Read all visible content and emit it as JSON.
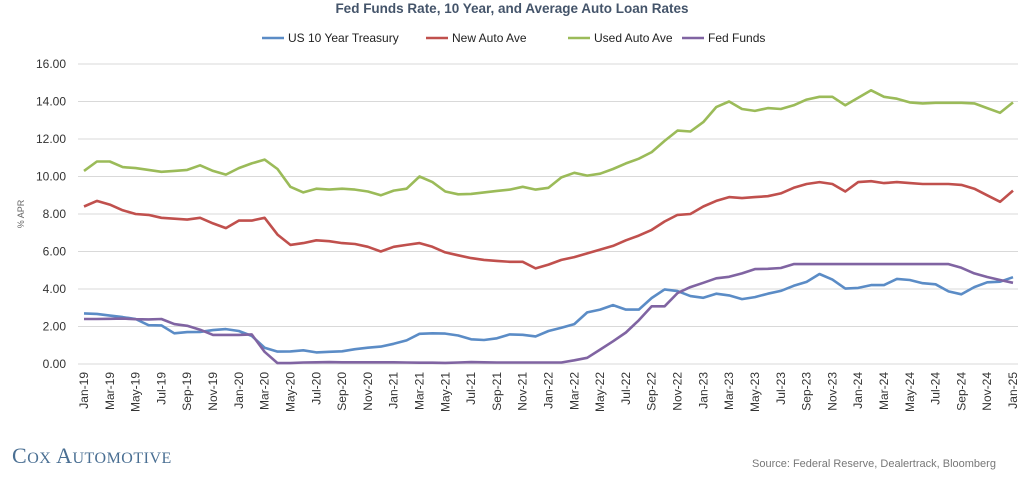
{
  "chart_data": {
    "type": "line",
    "title": "Fed Funds Rate, 10 Year, and Average Auto Loan Rates",
    "ylabel": "% APR",
    "xlabel": "",
    "ylim": [
      0,
      16
    ],
    "yticks": [
      "0.00",
      "2.00",
      "4.00",
      "6.00",
      "8.00",
      "10.00",
      "12.00",
      "14.00",
      "16.00"
    ],
    "grid": true,
    "legend_position": "top",
    "x_tick_labels": [
      "Jan-19",
      "Mar-19",
      "May-19",
      "Jul-19",
      "Sep-19",
      "Nov-19",
      "Jan-20",
      "Mar-20",
      "May-20",
      "Jul-20",
      "Sep-20",
      "Nov-20",
      "Jan-21",
      "Mar-21",
      "May-21",
      "Jul-21",
      "Sep-21",
      "Nov-21",
      "Jan-22",
      "Mar-22",
      "May-22",
      "Jul-22",
      "Sep-22",
      "Nov-22",
      "Jan-23",
      "Mar-23",
      "May-23",
      "Jul-23",
      "Sep-23",
      "Nov-23",
      "Jan-24",
      "Mar-24",
      "May-24",
      "Jul-24",
      "Sep-24",
      "Nov-24",
      "Jan-25"
    ],
    "x_range": [
      "Jan-19",
      "Jan-25"
    ],
    "x_frequency": "monthly",
    "series": [
      {
        "name": "US 10 Year Treasury",
        "color": "#5b8cc6",
        "values": [
          2.7,
          2.67,
          2.58,
          2.5,
          2.4,
          2.07,
          2.06,
          1.64,
          1.7,
          1.71,
          1.81,
          1.86,
          1.76,
          1.5,
          0.87,
          0.66,
          0.67,
          0.73,
          0.62,
          0.65,
          0.68,
          0.79,
          0.87,
          0.93,
          1.08,
          1.26,
          1.61,
          1.64,
          1.62,
          1.52,
          1.32,
          1.28,
          1.37,
          1.58,
          1.56,
          1.47,
          1.76,
          1.93,
          2.13,
          2.75,
          2.9,
          3.14,
          2.9,
          2.9,
          3.52,
          3.98,
          3.89,
          3.62,
          3.53,
          3.75,
          3.66,
          3.46,
          3.57,
          3.75,
          3.9,
          4.17,
          4.38,
          4.8,
          4.5,
          4.02,
          4.06,
          4.21,
          4.21,
          4.54,
          4.48,
          4.31,
          4.25,
          3.87,
          3.72,
          4.1,
          4.36,
          4.39,
          4.63
        ]
      },
      {
        "name": "New Auto Ave",
        "color": "#c0504d",
        "values": [
          8.4,
          8.7,
          8.5,
          8.2,
          8.0,
          7.95,
          7.8,
          7.75,
          7.7,
          7.8,
          7.5,
          7.25,
          7.65,
          7.65,
          7.8,
          6.9,
          6.35,
          6.45,
          6.6,
          6.55,
          6.45,
          6.4,
          6.25,
          6.0,
          6.25,
          6.35,
          6.45,
          6.25,
          5.95,
          5.8,
          5.65,
          5.55,
          5.5,
          5.45,
          5.45,
          5.1,
          5.3,
          5.55,
          5.7,
          5.9,
          6.1,
          6.3,
          6.6,
          6.85,
          7.15,
          7.6,
          7.95,
          8.0,
          8.4,
          8.7,
          8.9,
          8.85,
          8.9,
          8.95,
          9.1,
          9.4,
          9.6,
          9.7,
          9.6,
          9.2,
          9.7,
          9.75,
          9.65,
          9.7,
          9.65,
          9.6,
          9.6,
          9.6,
          9.55,
          9.35,
          9.0,
          8.65,
          9.25
        ]
      },
      {
        "name": "Used Auto Ave",
        "color": "#9bbb59",
        "values": [
          10.3,
          10.8,
          10.8,
          10.5,
          10.45,
          10.35,
          10.25,
          10.3,
          10.35,
          10.6,
          10.3,
          10.1,
          10.45,
          10.7,
          10.9,
          10.4,
          9.45,
          9.15,
          9.35,
          9.3,
          9.35,
          9.3,
          9.2,
          9.0,
          9.25,
          9.35,
          10.0,
          9.7,
          9.2,
          9.05,
          9.07,
          9.15,
          9.23,
          9.3,
          9.45,
          9.3,
          9.4,
          9.95,
          10.2,
          10.05,
          10.15,
          10.4,
          10.7,
          10.95,
          11.3,
          11.9,
          12.45,
          12.4,
          12.9,
          13.7,
          14.0,
          13.6,
          13.5,
          13.65,
          13.6,
          13.8,
          14.1,
          14.25,
          14.25,
          13.8,
          14.2,
          14.6,
          14.25,
          14.15,
          13.95,
          13.9,
          13.93,
          13.93,
          13.93,
          13.9,
          13.65,
          13.4,
          13.95
        ]
      },
      {
        "name": "Fed Funds",
        "color": "#8064a2",
        "values": [
          2.4,
          2.4,
          2.41,
          2.42,
          2.39,
          2.38,
          2.4,
          2.13,
          2.04,
          1.83,
          1.55,
          1.55,
          1.55,
          1.58,
          0.65,
          0.05,
          0.05,
          0.08,
          0.09,
          0.1,
          0.09,
          0.09,
          0.09,
          0.09,
          0.09,
          0.08,
          0.07,
          0.07,
          0.06,
          0.08,
          0.1,
          0.09,
          0.08,
          0.08,
          0.08,
          0.08,
          0.08,
          0.08,
          0.2,
          0.33,
          0.77,
          1.21,
          1.68,
          2.33,
          3.08,
          3.08,
          3.78,
          4.1,
          4.33,
          4.57,
          4.65,
          4.83,
          5.06,
          5.08,
          5.12,
          5.33,
          5.33,
          5.33,
          5.33,
          5.33,
          5.33,
          5.33,
          5.33,
          5.33,
          5.33,
          5.33,
          5.33,
          5.33,
          5.13,
          4.83,
          4.64,
          4.48,
          4.33
        ]
      }
    ]
  },
  "footer": {
    "logo_text": "Cox Automotive",
    "source": "Source: Federal Reserve, Dealertrack, Bloomberg"
  }
}
